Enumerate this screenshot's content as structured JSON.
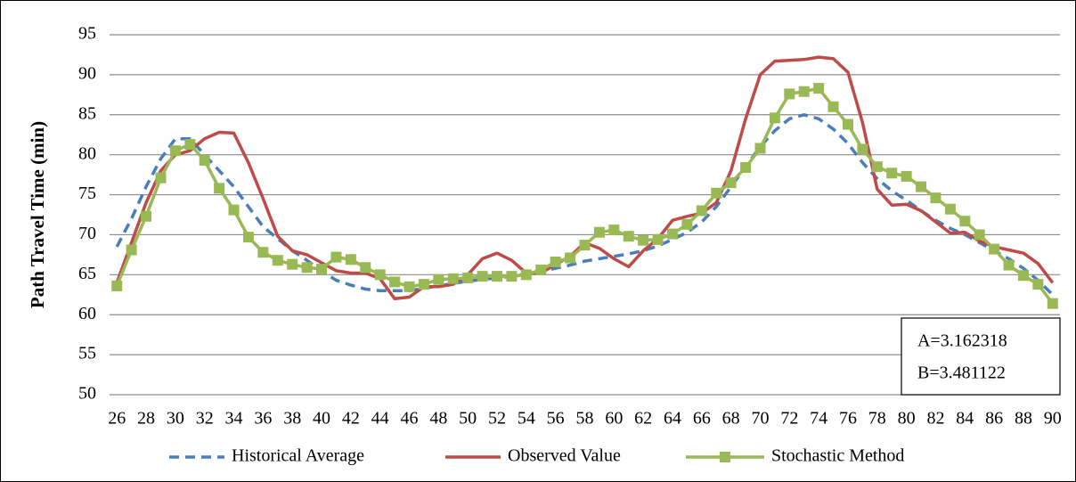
{
  "chart_data": {
    "type": "line",
    "y_label": "Path Travel  Time (min)",
    "categories": [
      26,
      null,
      28,
      null,
      30,
      null,
      32,
      null,
      34,
      null,
      36,
      null,
      38,
      null,
      40,
      null,
      42,
      null,
      44,
      null,
      46,
      null,
      48,
      null,
      50,
      null,
      52,
      null,
      54,
      null,
      56,
      null,
      58,
      null,
      60,
      null,
      62,
      null,
      64,
      null,
      66,
      null,
      68,
      null,
      70,
      null,
      72,
      null,
      74,
      null,
      76,
      null,
      78,
      null,
      80,
      null,
      82,
      null,
      84,
      null,
      86,
      null,
      88,
      null,
      90
    ],
    "series": [
      {
        "name": "Historical Average",
        "color": "#4a7ebb",
        "dash": true,
        "values": [
          68.5,
          72,
          76,
          79.5,
          82,
          82,
          80,
          78,
          76,
          73.5,
          71,
          69.5,
          68,
          66.8,
          65.5,
          64.3,
          63.7,
          63.2,
          63,
          63,
          63,
          63.3,
          63.6,
          63.9,
          64.2,
          64.4,
          64.6,
          64.8,
          65.1,
          65.4,
          65.8,
          66.2,
          66.7,
          67,
          67.3,
          67.6,
          68,
          68.6,
          69.4,
          70.3,
          71.6,
          73.5,
          76,
          78.5,
          81,
          83,
          84.5,
          85,
          84.5,
          83.2,
          81.4,
          79,
          77,
          75.5,
          74.3,
          73,
          71.8,
          70.8,
          70,
          69,
          68,
          67,
          65.8,
          64.3,
          62.5
        ]
      },
      {
        "name": "Observed Value",
        "color": "#be4b48",
        "values": [
          64,
          69,
          74,
          78,
          80,
          80.5,
          82,
          82.8,
          82.7,
          79,
          74.5,
          69.8,
          68,
          67.5,
          66.5,
          65.5,
          65.2,
          65.2,
          64.5,
          62,
          62.2,
          63.5,
          63.5,
          63.8,
          65,
          67,
          67.7,
          66.8,
          65.2,
          65.2,
          66.3,
          67.3,
          69,
          68.3,
          67,
          66,
          68,
          69.5,
          71.8,
          72.3,
          72.7,
          74,
          78,
          84.5,
          90,
          91.7,
          91.8,
          91.9,
          92.2,
          92,
          90.3,
          84,
          75.7,
          73.7,
          73.8,
          73,
          71.6,
          70.2,
          70.3,
          69.2,
          68.5,
          68.1,
          67.7,
          66.4,
          64
        ]
      },
      {
        "name": "Stochastic Method",
        "color": "#98b954",
        "marker": "square",
        "values": [
          63.6,
          68.1,
          72.3,
          77.1,
          80.5,
          81.3,
          79.3,
          75.8,
          73.1,
          69.7,
          67.8,
          66.8,
          66.3,
          65.9,
          65.7,
          67.2,
          66.9,
          65.9,
          65,
          64.1,
          63.5,
          63.8,
          64.4,
          64.5,
          64.6,
          64.8,
          64.8,
          64.8,
          65,
          65.6,
          66.6,
          67.1,
          68.7,
          70.3,
          70.6,
          69.8,
          69.3,
          69.4,
          70.1,
          71.3,
          73,
          75.2,
          76.5,
          78.4,
          80.8,
          84.6,
          87.6,
          87.9,
          88.3,
          86,
          83.8,
          80.7,
          78.5,
          77.7,
          77.3,
          76,
          74.6,
          73.2,
          71.7,
          70,
          68.2,
          66.2,
          64.9,
          63.8,
          61.4
        ]
      }
    ],
    "ylim": [
      50,
      95
    ],
    "yticks": [
      50,
      55,
      60,
      65,
      70,
      75,
      80,
      85,
      90,
      95
    ],
    "grid": true,
    "annotations": [
      "A=3.162318",
      "B=3.481122"
    ]
  }
}
